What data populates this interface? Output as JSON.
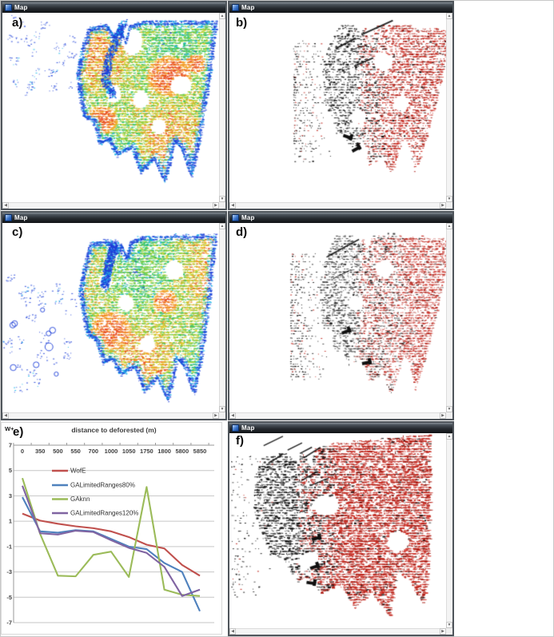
{
  "panels": [
    {
      "id": "a",
      "window_title": "Map",
      "label": "a)",
      "type": "probability-heat-map"
    },
    {
      "id": "b",
      "window_title": "Map",
      "label": "b)",
      "type": "binary-speckle-map"
    },
    {
      "id": "c",
      "window_title": "Map",
      "label": "c)",
      "type": "probability-heat-map"
    },
    {
      "id": "d",
      "window_title": "Map",
      "label": "d)",
      "type": "binary-speckle-map"
    },
    {
      "id": "f",
      "window_title": "Map",
      "label": "f)",
      "type": "binary-speckle-map"
    }
  ],
  "map_colors": {
    "heat_palette": [
      "#1d3fd8",
      "#18b5e8",
      "#2fc46a",
      "#8fd03c",
      "#ddd02a",
      "#f39f24",
      "#e8491f"
    ],
    "speckle_red": [
      "#c0231a",
      "#d03127",
      "#a81b12"
    ],
    "speckle_black": "#101010"
  },
  "chart_data": {
    "type": "line",
    "panel_label": "e)",
    "title": "distance to deforested (m)",
    "ylabel": "W+",
    "categories": [
      "0",
      "350",
      "500",
      "550",
      "700",
      "1000",
      "1050",
      "1750",
      "1800",
      "5800",
      "5850"
    ],
    "series": [
      {
        "name": "WofE",
        "color": "#C0504D",
        "values": [
          1.6,
          1.05,
          0.8,
          0.6,
          0.45,
          0.2,
          -0.25,
          -0.85,
          -1.15,
          -2.45,
          -3.3
        ]
      },
      {
        "name": "GALimitedRanges80%",
        "color": "#4F81BD",
        "values": [
          2.9,
          0.2,
          0.1,
          0.3,
          0.2,
          -0.4,
          -1.0,
          -1.2,
          -2.3,
          -3.0,
          -6.1
        ]
      },
      {
        "name": "GAknn",
        "color": "#9BBB59",
        "values": [
          4.4,
          0.0,
          -3.3,
          -3.35,
          -1.65,
          -1.4,
          -3.4,
          3.7,
          -4.4,
          -4.8,
          -4.9
        ]
      },
      {
        "name": "GALimitedRanges120%",
        "color": "#8064A2",
        "values": [
          3.8,
          0.05,
          -0.05,
          0.25,
          0.15,
          -0.5,
          -1.1,
          -1.5,
          -2.6,
          -4.9,
          -4.4
        ]
      }
    ],
    "ylim": [
      -7,
      7
    ],
    "yticks": [
      7,
      5,
      3,
      1,
      -1,
      -3,
      -5,
      -7
    ],
    "grid": true,
    "legend_position": "inside-upper-left",
    "x_axis_position": "top"
  }
}
